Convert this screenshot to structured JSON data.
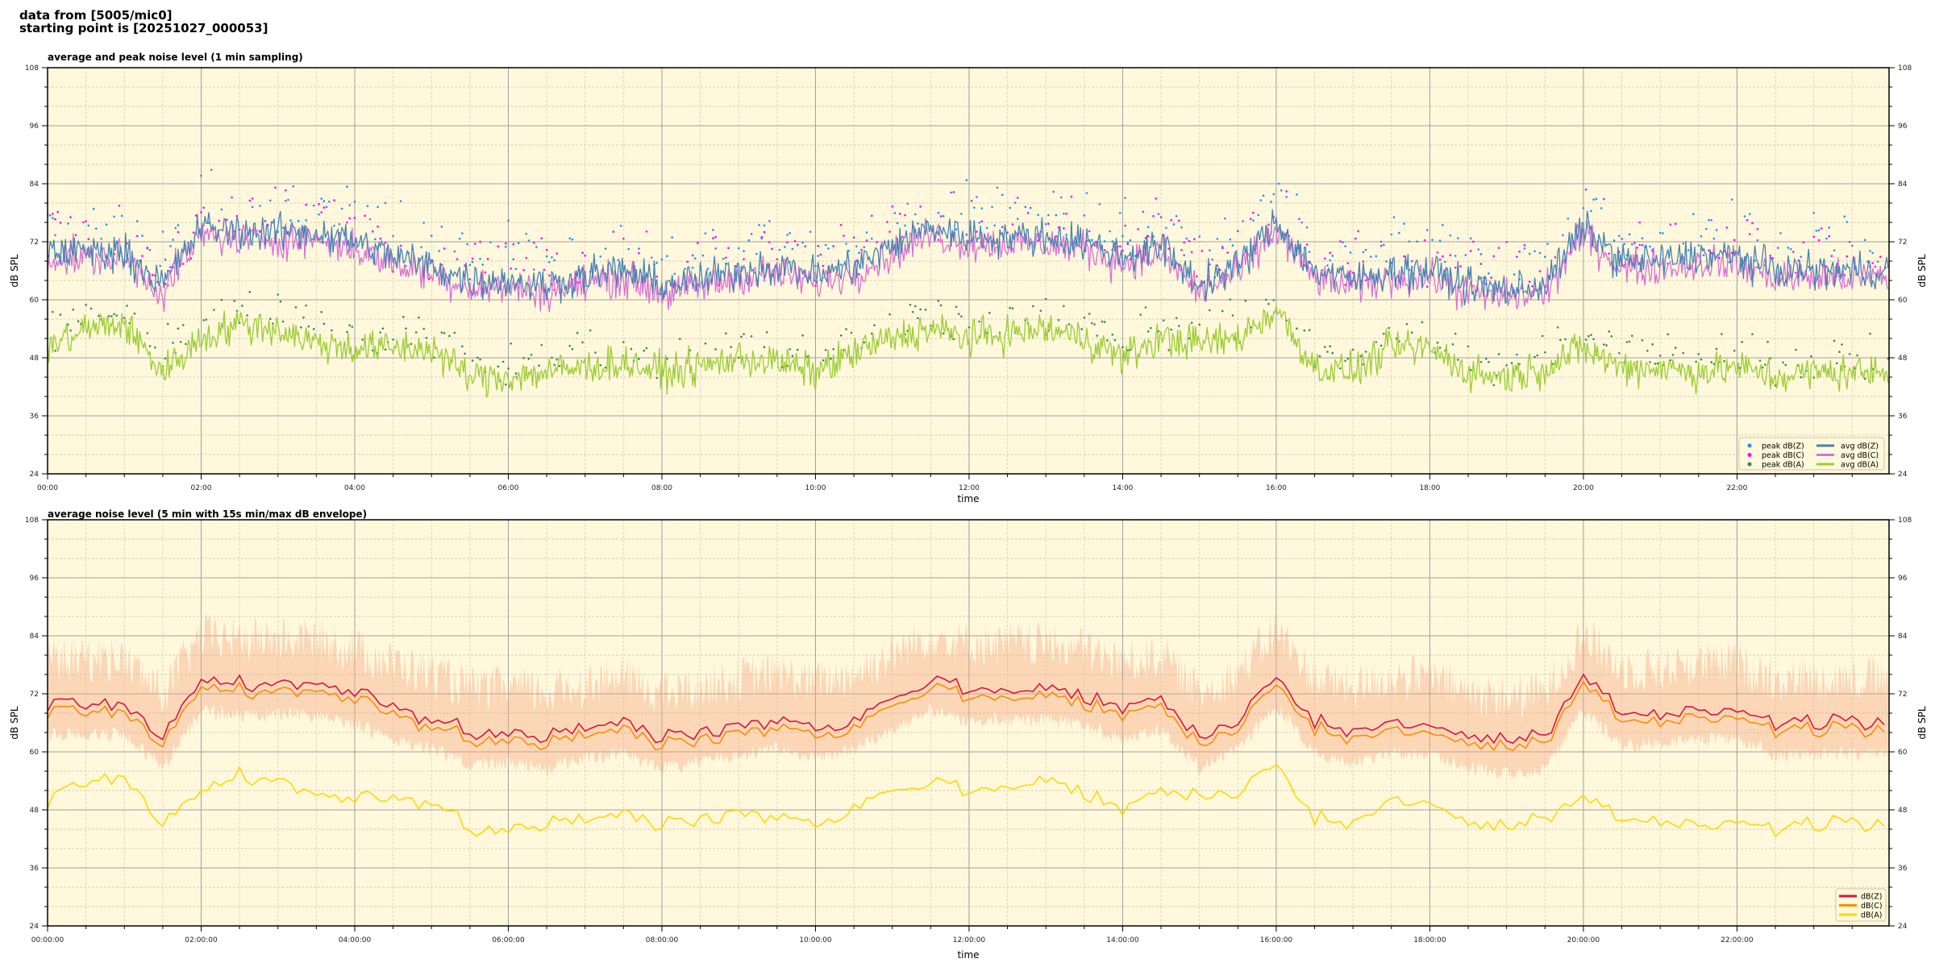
{
  "header": {
    "line1": "data from [5005/mic0]",
    "line2": "starting point is [20251027_000053]"
  },
  "chart_data": [
    {
      "type": "line",
      "title": "average and peak noise level (1 min sampling)",
      "xlabel": "time",
      "ylabel": "dB SPL",
      "ylim": [
        24,
        108
      ],
      "xlim_hours": [
        0,
        23.98
      ],
      "yticks": [
        "24",
        "36",
        "48",
        "60",
        "72",
        "84",
        "96",
        "108"
      ],
      "xticks": [
        "00:00",
        "02:00",
        "04:00",
        "06:00",
        "08:00",
        "10:00",
        "12:00",
        "14:00",
        "16:00",
        "18:00",
        "20:00",
        "22:00"
      ],
      "grid": true,
      "legend_placement": "lower-right",
      "x_step_minutes": 30,
      "series": [
        {
          "name": "peak dB(Z)",
          "kind": "scatter",
          "color": "#1e90ff",
          "offset_from": "avg dB(Z)",
          "offset_db": 10
        },
        {
          "name": "peak dB(C)",
          "kind": "scatter",
          "color": "#ff00ff",
          "offset_from": "avg dB(C)",
          "offset_db": 10
        },
        {
          "name": "peak dB(A)",
          "kind": "scatter",
          "color": "#2e8b57",
          "offset_from": "avg dB(A)",
          "offset_db": 6
        },
        {
          "name": "avg dB(Z)",
          "kind": "line",
          "color": "#4682b4",
          "values": [
            70,
            70,
            70,
            63,
            75,
            74,
            74,
            74,
            72,
            69,
            67,
            64,
            64,
            63,
            65,
            66,
            63,
            64,
            66,
            67,
            65,
            67,
            71,
            75,
            73,
            73,
            73,
            72,
            69,
            71,
            63,
            67,
            76,
            66,
            64,
            66,
            66,
            63,
            62,
            63,
            75,
            68,
            68,
            69,
            69,
            66,
            66,
            66
          ]
        },
        {
          "name": "avg dB(C)",
          "kind": "line",
          "color": "#da70d6",
          "values": [
            68.5,
            68.5,
            68.5,
            61.5,
            73.5,
            72.5,
            72.5,
            72.5,
            70.5,
            67.5,
            65.5,
            62.5,
            62.5,
            61.5,
            63.5,
            64.5,
            61.5,
            62.5,
            64.5,
            65.5,
            63.5,
            65.5,
            69.5,
            73.5,
            71.5,
            71.5,
            71.5,
            70.5,
            67.5,
            69.5,
            61.5,
            65.5,
            74.5,
            64.5,
            62.5,
            64.5,
            64.5,
            61.5,
            60.5,
            61.5,
            73.5,
            66.5,
            66.5,
            67.5,
            67.5,
            64.5,
            64.5,
            64.5
          ]
        },
        {
          "name": "avg dB(A)",
          "kind": "line",
          "color": "#9acd32",
          "values": [
            50,
            54,
            55,
            45,
            52,
            55,
            54,
            51,
            50,
            50,
            50,
            44,
            44,
            45,
            46,
            47,
            45,
            46,
            48,
            47,
            45,
            49,
            52,
            54,
            52,
            53,
            54,
            52,
            48,
            52,
            51,
            52,
            58,
            46,
            45,
            50,
            50,
            45,
            44,
            46,
            50,
            46,
            46,
            45,
            46,
            44,
            45,
            45
          ]
        }
      ]
    },
    {
      "type": "line",
      "title": "average noise level (5 min with 15s min/max dB envelope)",
      "xlabel": "time",
      "ylabel": "dB SPL",
      "ylim": [
        24,
        108
      ],
      "xlim_hours": [
        0,
        23.98
      ],
      "yticks": [
        "24",
        "36",
        "48",
        "60",
        "72",
        "84",
        "96",
        "108"
      ],
      "xticks": [
        "00:00:00",
        "02:00:00",
        "04:00:00",
        "06:00:00",
        "08:00:00",
        "10:00:00",
        "12:00:00",
        "14:00:00",
        "16:00:00",
        "18:00:00",
        "20:00:00",
        "22:00:00"
      ],
      "grid": true,
      "legend_placement": "lower-right",
      "x_step_minutes": 30,
      "envelope": {
        "color": "#f4a582",
        "min_offset_db": -8,
        "max_offset_db": 14
      },
      "series": [
        {
          "name": "dB(Z)",
          "color": "#dc143c",
          "values": [
            70,
            70,
            70,
            63,
            75,
            74,
            74,
            74,
            72,
            69,
            67,
            64,
            64,
            63,
            65,
            66,
            63,
            64,
            66,
            67,
            65,
            67,
            71,
            75,
            73,
            73,
            73,
            72,
            69,
            71,
            63,
            67,
            76,
            66,
            64,
            66,
            66,
            63,
            62,
            63,
            75,
            68,
            68,
            69,
            69,
            66,
            66,
            66
          ]
        },
        {
          "name": "dB(C)",
          "color": "#ff8c00",
          "values": [
            68.5,
            68.5,
            68.5,
            61.5,
            73.5,
            72.5,
            72.5,
            72.5,
            70.5,
            67.5,
            65.5,
            62.5,
            62.5,
            61.5,
            63.5,
            64.5,
            61.5,
            62.5,
            64.5,
            65.5,
            63.5,
            65.5,
            69.5,
            73.5,
            71.5,
            71.5,
            71.5,
            70.5,
            67.5,
            69.5,
            61.5,
            65.5,
            74.5,
            64.5,
            62.5,
            64.5,
            64.5,
            61.5,
            60.5,
            61.5,
            73.5,
            66.5,
            66.5,
            67.5,
            67.5,
            64.5,
            64.5,
            64.5
          ]
        },
        {
          "name": "dB(A)",
          "color": "#ffd700",
          "values": [
            50,
            54,
            55,
            45,
            52,
            55,
            54,
            51,
            50,
            50,
            50,
            44,
            44,
            45,
            46,
            47,
            45,
            46,
            48,
            47,
            45,
            49,
            52,
            54,
            52,
            53,
            54,
            52,
            48,
            52,
            51,
            52,
            58,
            46,
            45,
            50,
            50,
            45,
            44,
            46,
            50,
            46,
            46,
            45,
            46,
            44,
            45,
            45
          ]
        }
      ]
    }
  ]
}
